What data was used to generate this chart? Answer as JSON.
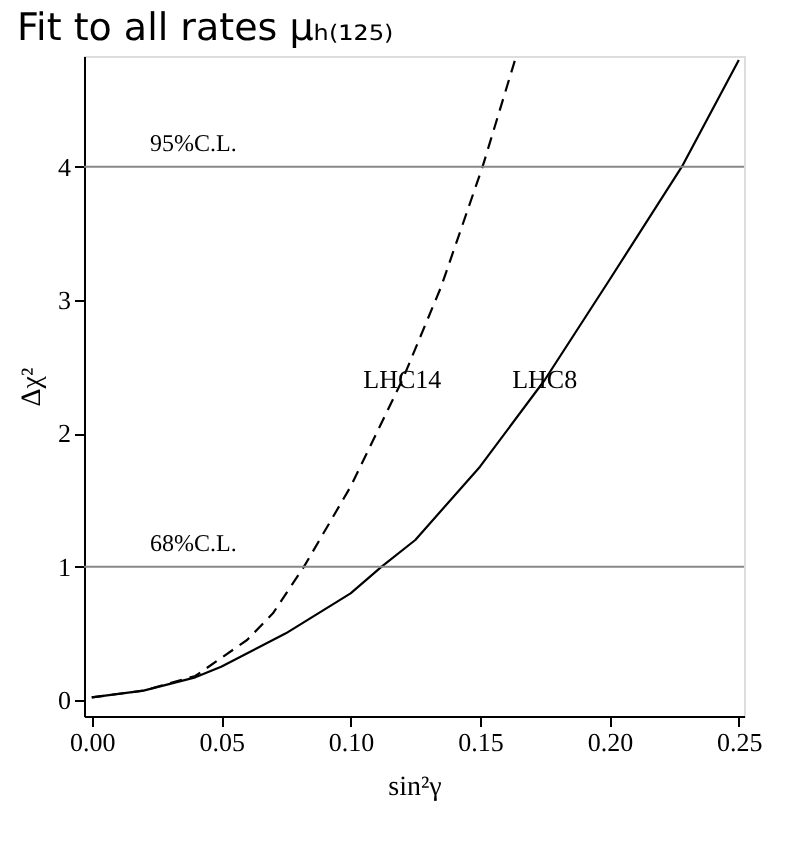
{
  "chart_data": {
    "type": "line",
    "title": "Fit to all rates μₕ₍₁₂₅₎",
    "xlabel": "sin²γ",
    "ylabel": "Δχ²",
    "xlim": [
      -0.003,
      0.252
    ],
    "ylim": [
      -0.12,
      4.83
    ],
    "xticks": [
      {
        "value": 0,
        "label": "0.00"
      },
      0.05,
      {
        "value": 0.1,
        "label": "0.10"
      },
      0.15,
      {
        "value": 0.2,
        "label": "0.20"
      },
      0.25
    ],
    "yticks": [
      0,
      1,
      2,
      3,
      4
    ],
    "grid": false,
    "marker": "none",
    "series": [
      {
        "name": "LHC14",
        "color": "#000000",
        "line_style": "dashed",
        "x": [
          0,
          0.02,
          0.04,
          0.06,
          0.07,
          0.082,
          0.1,
          0.12,
          0.135,
          0.151,
          0.164
        ],
        "values": [
          0.02,
          0.07,
          0.18,
          0.45,
          0.65,
          1.0,
          1.6,
          2.4,
          3.1,
          4.0,
          4.83
        ]
      },
      {
        "name": "LHC8",
        "color": "#000000",
        "line_style": "solid",
        "x": [
          0,
          0.02,
          0.04,
          0.05,
          0.075,
          0.1,
          0.112,
          0.125,
          0.15,
          0.175,
          0.2,
          0.228,
          0.25
        ],
        "values": [
          0.02,
          0.07,
          0.17,
          0.25,
          0.5,
          0.8,
          1.0,
          1.2,
          1.75,
          2.4,
          3.15,
          4.0,
          4.8
        ]
      }
    ],
    "ref_lines": [
      {
        "axis": "y",
        "value": 4,
        "label": "95%C.L.",
        "color": "#888888"
      },
      {
        "axis": "y",
        "value": 1,
        "label": "68%C.L.",
        "color": "#888888"
      }
    ]
  }
}
